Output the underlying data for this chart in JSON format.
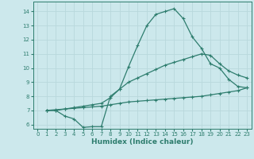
{
  "xlabel": "Humidex (Indice chaleur)",
  "background_color": "#cce8ec",
  "line_color": "#2e7d6e",
  "grid_color": "#b8d8dc",
  "xlim": [
    -0.5,
    23.5
  ],
  "ylim": [
    5.7,
    14.7
  ],
  "xticks": [
    0,
    1,
    2,
    3,
    4,
    5,
    6,
    7,
    8,
    9,
    10,
    11,
    12,
    13,
    14,
    15,
    16,
    17,
    18,
    19,
    20,
    21,
    22,
    23
  ],
  "yticks": [
    6,
    7,
    8,
    9,
    10,
    11,
    12,
    13,
    14
  ],
  "curve1_x": [
    1,
    2,
    3,
    4,
    5,
    6,
    7,
    8,
    9,
    10,
    11,
    12,
    13,
    14,
    15,
    16,
    17,
    18,
    19,
    20,
    21,
    22,
    23
  ],
  "curve1_y": [
    7.0,
    7.0,
    6.6,
    6.4,
    5.8,
    5.85,
    5.85,
    8.0,
    8.5,
    10.1,
    11.6,
    13.0,
    13.8,
    14.0,
    14.2,
    13.5,
    12.2,
    11.4,
    10.3,
    10.0,
    9.2,
    8.7,
    8.6
  ],
  "curve2_x": [
    1,
    2,
    3,
    4,
    5,
    6,
    7,
    8,
    9,
    10,
    11,
    12,
    13,
    14,
    15,
    16,
    17,
    18,
    19,
    20,
    21,
    22,
    23
  ],
  "curve2_y": [
    7.0,
    7.0,
    7.1,
    7.2,
    7.3,
    7.4,
    7.5,
    7.9,
    8.5,
    9.0,
    9.3,
    9.6,
    9.9,
    10.2,
    10.4,
    10.6,
    10.8,
    11.0,
    10.9,
    10.3,
    9.8,
    9.5,
    9.3
  ],
  "curve3_x": [
    1,
    2,
    3,
    4,
    5,
    6,
    7,
    8,
    9,
    10,
    11,
    12,
    13,
    14,
    15,
    16,
    17,
    18,
    19,
    20,
    21,
    22,
    23
  ],
  "curve3_y": [
    7.0,
    7.05,
    7.1,
    7.15,
    7.2,
    7.25,
    7.3,
    7.4,
    7.5,
    7.6,
    7.65,
    7.7,
    7.75,
    7.8,
    7.85,
    7.9,
    7.95,
    8.0,
    8.1,
    8.2,
    8.3,
    8.4,
    8.6
  ]
}
